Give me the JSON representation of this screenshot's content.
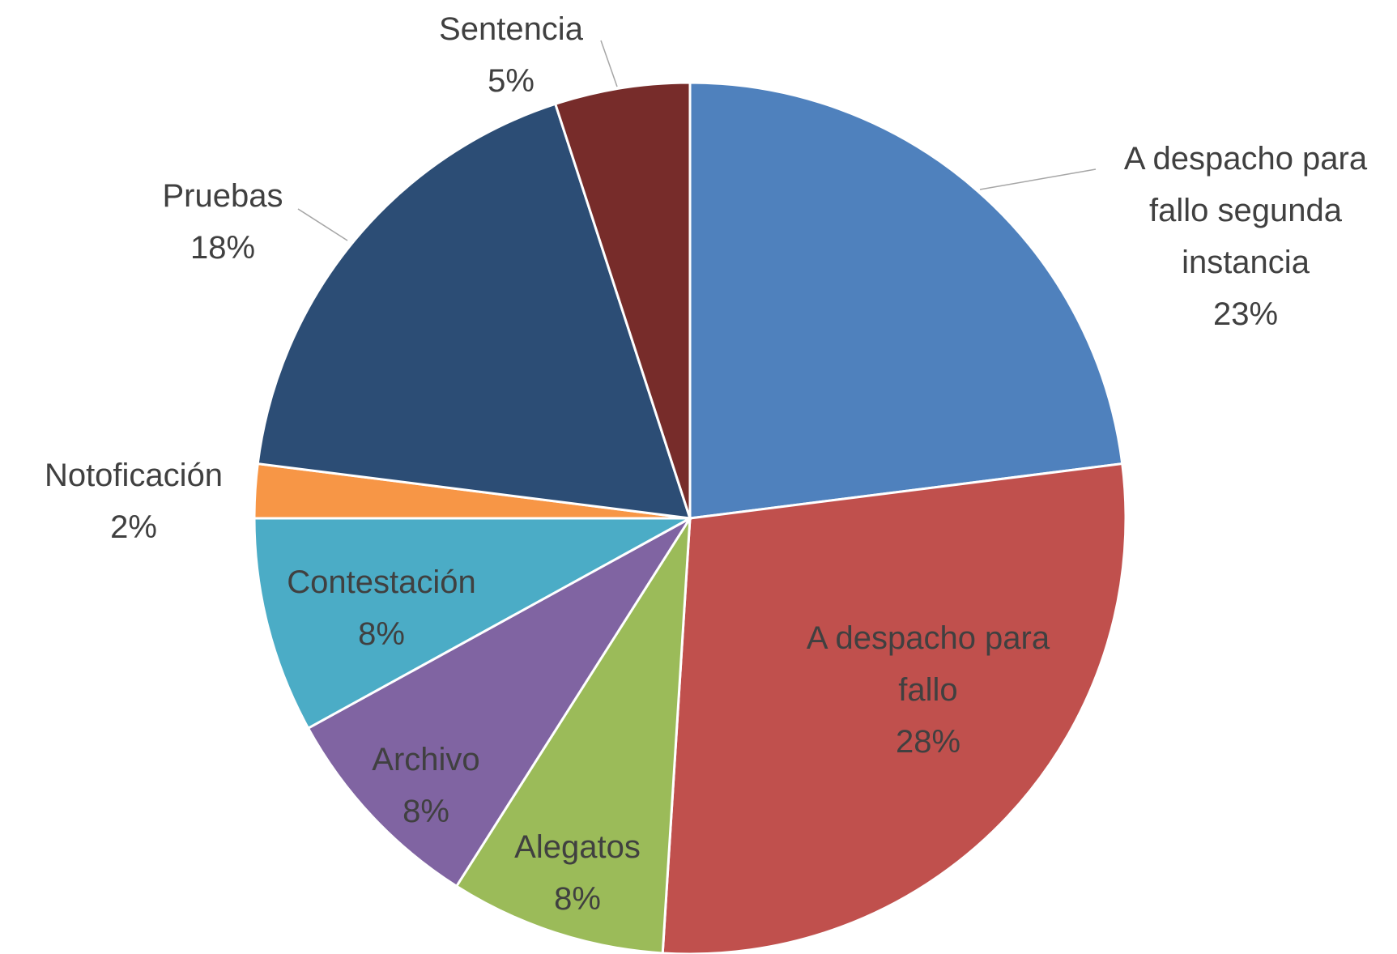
{
  "chart_data": {
    "type": "pie",
    "categories": [
      "A despacho para fallo segunda instancia",
      "A despacho para fallo",
      "Alegatos",
      "Archivo",
      "Contestación",
      "Notoficación",
      "Pruebas",
      "Sentencia"
    ],
    "values": [
      23,
      28,
      8,
      8,
      8,
      2,
      18,
      5
    ],
    "value_labels": [
      "23%",
      "28%",
      "8%",
      "8%",
      "8%",
      "2%",
      "18%",
      "5%"
    ],
    "colors": [
      "#4f81bd",
      "#c0504d",
      "#9bbb59",
      "#8064a2",
      "#4bacc6",
      "#f79646",
      "#2c4d75",
      "#772c2a"
    ]
  }
}
